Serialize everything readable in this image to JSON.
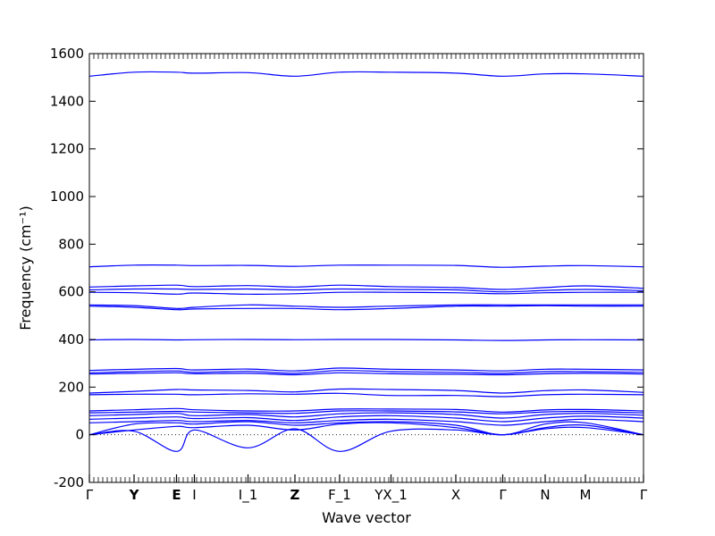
{
  "chart_data": {
    "type": "line",
    "xlabel": "Wave vector",
    "ylabel": "Frequency (cm⁻¹)",
    "ylim": [
      -200,
      1600
    ],
    "yticks": [
      -200,
      0,
      200,
      400,
      600,
      800,
      1000,
      1200,
      1400,
      1600
    ],
    "grid": false,
    "line_color": "#0000ff",
    "zero_line": {
      "y": 0,
      "style": "dotted",
      "color": "#000000"
    },
    "kpoints": [
      {
        "label": "Γ",
        "bold": false
      },
      {
        "label": "Y",
        "bold": true
      },
      {
        "label": "E",
        "bold": true
      },
      {
        "label": "I",
        "bold": false
      },
      {
        "label": "I_1",
        "bold": false
      },
      {
        "label": "Z",
        "bold": true
      },
      {
        "label": "F_1",
        "bold": false
      },
      {
        "label": "YX_1",
        "bold": false
      },
      {
        "label": "X",
        "bold": false
      },
      {
        "label": "Γ",
        "bold": false
      },
      {
        "label": "N",
        "bold": false
      },
      {
        "label": "M",
        "bold": false
      },
      {
        "label": "Γ",
        "bold": false
      }
    ],
    "x": [
      0,
      1,
      1.95,
      2.35,
      3.55,
      4.6,
      5.6,
      6.75,
      8.2,
      9.25,
      10.2,
      11.1,
      12.4
    ],
    "series": [
      {
        "values": [
          1505,
          1522,
          1522,
          1518,
          1520,
          1505,
          1522,
          1522,
          1518,
          1505,
          1515,
          1515,
          1505
        ]
      },
      {
        "values": [
          705,
          712,
          712,
          710,
          711,
          707,
          712,
          712,
          711,
          703,
          708,
          710,
          705
        ]
      },
      {
        "values": [
          620,
          625,
          628,
          622,
          626,
          620,
          628,
          622,
          618,
          610,
          618,
          625,
          615
        ]
      },
      {
        "values": [
          608,
          612,
          612,
          610,
          612,
          608,
          612,
          610,
          608,
          600,
          606,
          610,
          605
        ]
      },
      {
        "values": [
          598,
          596,
          590,
          595,
          590,
          592,
          598,
          598,
          596,
          592,
          596,
          598,
          598
        ]
      },
      {
        "values": [
          545,
          542,
          530,
          535,
          545,
          540,
          535,
          540,
          545,
          545,
          545,
          545,
          545
        ]
      },
      {
        "values": [
          540,
          535,
          525,
          528,
          530,
          530,
          525,
          530,
          540,
          540,
          542,
          540,
          540
        ]
      },
      {
        "values": [
          398,
          400,
          398,
          399,
          400,
          399,
          400,
          400,
          398,
          396,
          398,
          399,
          398
        ]
      },
      {
        "values": [
          270,
          275,
          278,
          272,
          276,
          268,
          280,
          275,
          272,
          268,
          275,
          275,
          272
        ]
      },
      {
        "values": [
          260,
          265,
          268,
          262,
          266,
          258,
          270,
          265,
          262,
          258,
          265,
          265,
          262
        ]
      },
      {
        "values": [
          255,
          258,
          260,
          256,
          258,
          252,
          260,
          256,
          254,
          252,
          256,
          258,
          255
        ]
      },
      {
        "values": [
          175,
          182,
          190,
          188,
          186,
          180,
          192,
          190,
          186,
          175,
          185,
          188,
          178
        ]
      },
      {
        "values": [
          168,
          170,
          170,
          168,
          172,
          170,
          174,
          165,
          165,
          160,
          168,
          170,
          168
        ]
      },
      {
        "values": [
          100,
          105,
          110,
          105,
          100,
          100,
          108,
          108,
          106,
          95,
          104,
          106,
          100
        ]
      },
      {
        "values": [
          92,
          95,
          98,
          95,
          92,
          90,
          100,
          100,
          96,
          88,
          96,
          98,
          92
        ]
      },
      {
        "values": [
          80,
          85,
          90,
          80,
          85,
          75,
          88,
          92,
          85,
          70,
          85,
          90,
          82
        ]
      },
      {
        "values": [
          65,
          70,
          75,
          68,
          72,
          60,
          75,
          80,
          70,
          55,
          70,
          78,
          70
        ]
      },
      {
        "values": [
          50,
          55,
          60,
          55,
          60,
          50,
          60,
          65,
          55,
          40,
          55,
          65,
          55
        ]
      },
      {
        "values": [
          0,
          45,
          50,
          45,
          55,
          40,
          50,
          55,
          40,
          0,
          45,
          50,
          0
        ]
      },
      {
        "values": [
          0,
          20,
          35,
          30,
          40,
          20,
          45,
          50,
          30,
          0,
          30,
          40,
          0
        ]
      },
      {
        "values": [
          0,
          15,
          -70,
          20,
          -55,
          25,
          -70,
          15,
          20,
          0,
          25,
          30,
          0
        ]
      }
    ]
  }
}
